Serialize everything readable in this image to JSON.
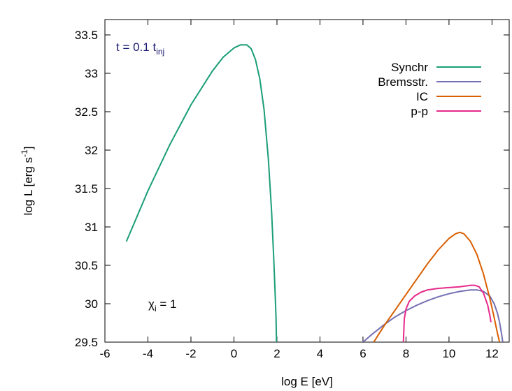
{
  "chart_data": {
    "type": "line",
    "xlabel": "log E [eV]",
    "ylabel": {
      "main": "log L [erg s",
      "sup": "-1",
      "end": "]"
    },
    "xlim": [
      -6,
      12.8
    ],
    "ylim": [
      29.5,
      33.7
    ],
    "xticks": [
      -6,
      -4,
      -2,
      0,
      2,
      4,
      6,
      8,
      10,
      12
    ],
    "yticks": [
      29.5,
      30,
      30.5,
      31,
      31.5,
      32,
      32.5,
      33,
      33.5
    ],
    "xtick_labels": [
      "-6",
      "-4",
      "-2",
      "0",
      "2",
      "4",
      "6",
      "8",
      "10",
      "12"
    ],
    "ytick_labels": [
      "29.5",
      "30",
      "30.5",
      "31",
      "31.5",
      "32",
      "32.5",
      "33",
      "33.5"
    ],
    "grid": false,
    "legend_position": "top-right",
    "annotations": {
      "time": {
        "main": "t = 0.1 t",
        "sub": "inj",
        "color": "#191970"
      },
      "chi": {
        "main": "χ",
        "sub": "i",
        "end": " = 1"
      }
    },
    "series": [
      {
        "name": "Synchr",
        "color": "#1a9e77",
        "x": [
          -5.0,
          -4.0,
          -3.0,
          -2.0,
          -1.0,
          -0.5,
          0.0,
          0.3,
          0.5,
          0.6,
          0.8,
          1.0,
          1.2,
          1.4,
          1.6,
          1.75,
          1.85,
          1.92,
          1.96,
          1.98
        ],
        "y": [
          30.81,
          31.47,
          32.06,
          32.59,
          33.03,
          33.21,
          33.33,
          33.37,
          33.37,
          33.37,
          33.32,
          33.18,
          32.93,
          32.53,
          31.88,
          31.2,
          30.6,
          30.1,
          29.8,
          29.5
        ]
      },
      {
        "name": "Bremsstr.",
        "color": "#7570b3",
        "x": [
          6.0,
          6.5,
          7.0,
          7.5,
          8.0,
          8.5,
          9.0,
          9.5,
          10.0,
          10.5,
          11.0,
          11.3,
          11.6,
          11.9,
          12.1,
          12.25,
          12.35,
          12.45,
          12.5
        ],
        "y": [
          29.5,
          29.62,
          29.73,
          29.83,
          29.91,
          29.98,
          30.04,
          30.09,
          30.13,
          30.16,
          30.18,
          30.18,
          30.16,
          30.1,
          30.0,
          29.88,
          29.76,
          29.6,
          29.5
        ]
      },
      {
        "name": "IC",
        "color": "#d95f02",
        "x": [
          6.5,
          7.0,
          7.5,
          8.0,
          8.5,
          9.0,
          9.5,
          10.0,
          10.3,
          10.5,
          10.7,
          11.0,
          11.3,
          11.6,
          11.9,
          12.1,
          12.25,
          12.35
        ],
        "y": [
          29.5,
          29.72,
          29.92,
          30.12,
          30.32,
          30.52,
          30.7,
          30.85,
          30.91,
          30.93,
          30.91,
          30.81,
          30.64,
          30.39,
          30.07,
          29.82,
          29.62,
          29.5
        ]
      },
      {
        "name": "p-p",
        "color": "#e7298a",
        "x": [
          7.88,
          7.92,
          8.0,
          8.15,
          8.4,
          8.7,
          9.0,
          9.5,
          10.0,
          10.5,
          11.0,
          11.2,
          11.4,
          11.6,
          11.8,
          11.9,
          11.95
        ],
        "y": [
          29.5,
          29.8,
          29.93,
          30.03,
          30.1,
          30.15,
          30.18,
          30.2,
          30.21,
          30.22,
          30.24,
          30.24,
          30.22,
          30.14,
          29.98,
          29.85,
          29.76
        ]
      }
    ]
  }
}
